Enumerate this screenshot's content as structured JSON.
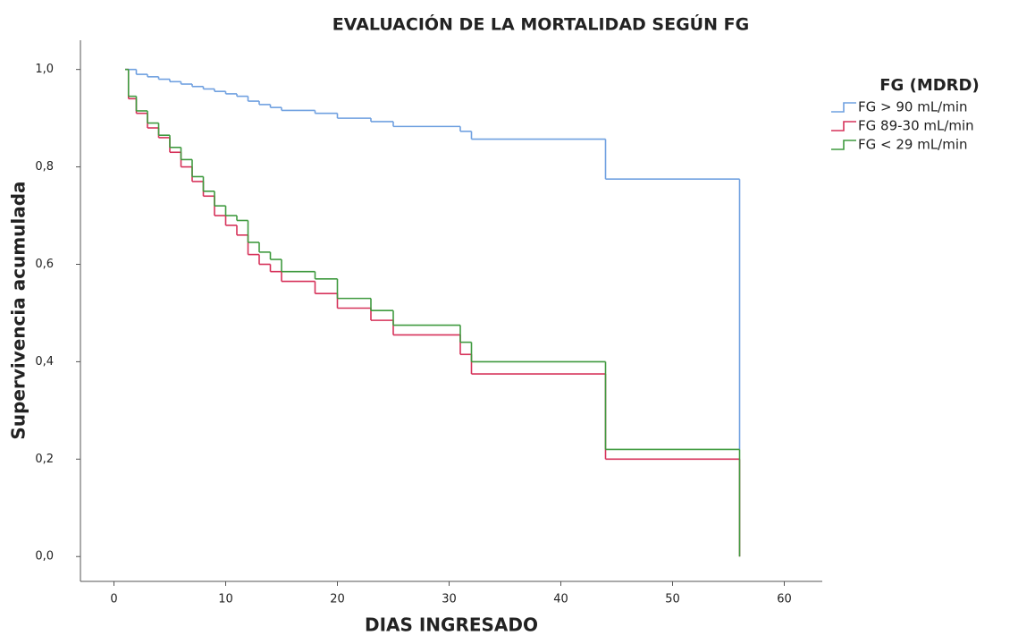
{
  "chart_data": {
    "type": "step",
    "title": "EVALUACIÓN DE LA MORTALIDAD SEGÚN FG",
    "x_label": "DIAS INGRESADO",
    "y_label": "Supervivencia acumulada",
    "legend_title": "FG (MDRD)",
    "legend_position": "right",
    "grid": false,
    "xlim": [
      -3,
      63.4
    ],
    "ylim": [
      -0.051,
      1.06
    ],
    "xticks": [
      0,
      10,
      20,
      30,
      40,
      50,
      60
    ],
    "yticks": [
      {
        "value": 0,
        "label": "0,0"
      },
      {
        "value": 0.2,
        "label": "0,2"
      },
      {
        "value": 0.4,
        "label": "0,4"
      },
      {
        "value": 0.6,
        "label": "0,6"
      },
      {
        "value": 0.8,
        "label": "0,8"
      },
      {
        "value": 1,
        "label": "1,0"
      }
    ],
    "series": [
      {
        "name": "FG > 90 mL/min",
        "color": "#6fa0e0",
        "x": [
          1,
          2,
          3,
          4,
          5,
          6,
          7,
          8,
          9,
          10,
          11,
          12,
          13,
          14,
          15,
          18,
          20,
          23,
          25,
          31,
          32,
          44,
          56
        ],
        "values": [
          1,
          0.99,
          0.985,
          0.98,
          0.975,
          0.97,
          0.965,
          0.96,
          0.955,
          0.95,
          0.945,
          0.935,
          0.928,
          0.922,
          0.916,
          0.91,
          0.9,
          0.893,
          0.883,
          0.873,
          0.857,
          0.775,
          0.22
        ]
      },
      {
        "name": "FG 89-30 mL/min",
        "color": "#d6325a",
        "x": [
          1,
          1.3,
          2,
          3,
          4,
          5,
          6,
          7,
          8,
          9,
          10,
          11,
          12,
          13,
          14,
          15,
          18,
          20,
          23,
          25,
          31,
          32,
          44,
          56
        ],
        "values": [
          1,
          0.94,
          0.91,
          0.88,
          0.86,
          0.83,
          0.8,
          0.77,
          0.74,
          0.7,
          0.68,
          0.66,
          0.62,
          0.6,
          0.585,
          0.565,
          0.54,
          0.51,
          0.485,
          0.455,
          0.415,
          0.375,
          0.2,
          0
        ]
      },
      {
        "name": "FG < 29 mL/min",
        "color": "#3f9a3f",
        "x": [
          1,
          1.3,
          2,
          3,
          4,
          5,
          6,
          7,
          8,
          9,
          10,
          11,
          12,
          13,
          14,
          15,
          18,
          20,
          23,
          25,
          31,
          32,
          44,
          56
        ],
        "values": [
          1,
          0.945,
          0.915,
          0.89,
          0.865,
          0.84,
          0.815,
          0.78,
          0.75,
          0.72,
          0.7,
          0.69,
          0.645,
          0.625,
          0.61,
          0.585,
          0.57,
          0.53,
          0.505,
          0.475,
          0.44,
          0.4,
          0.22,
          0
        ]
      }
    ]
  }
}
